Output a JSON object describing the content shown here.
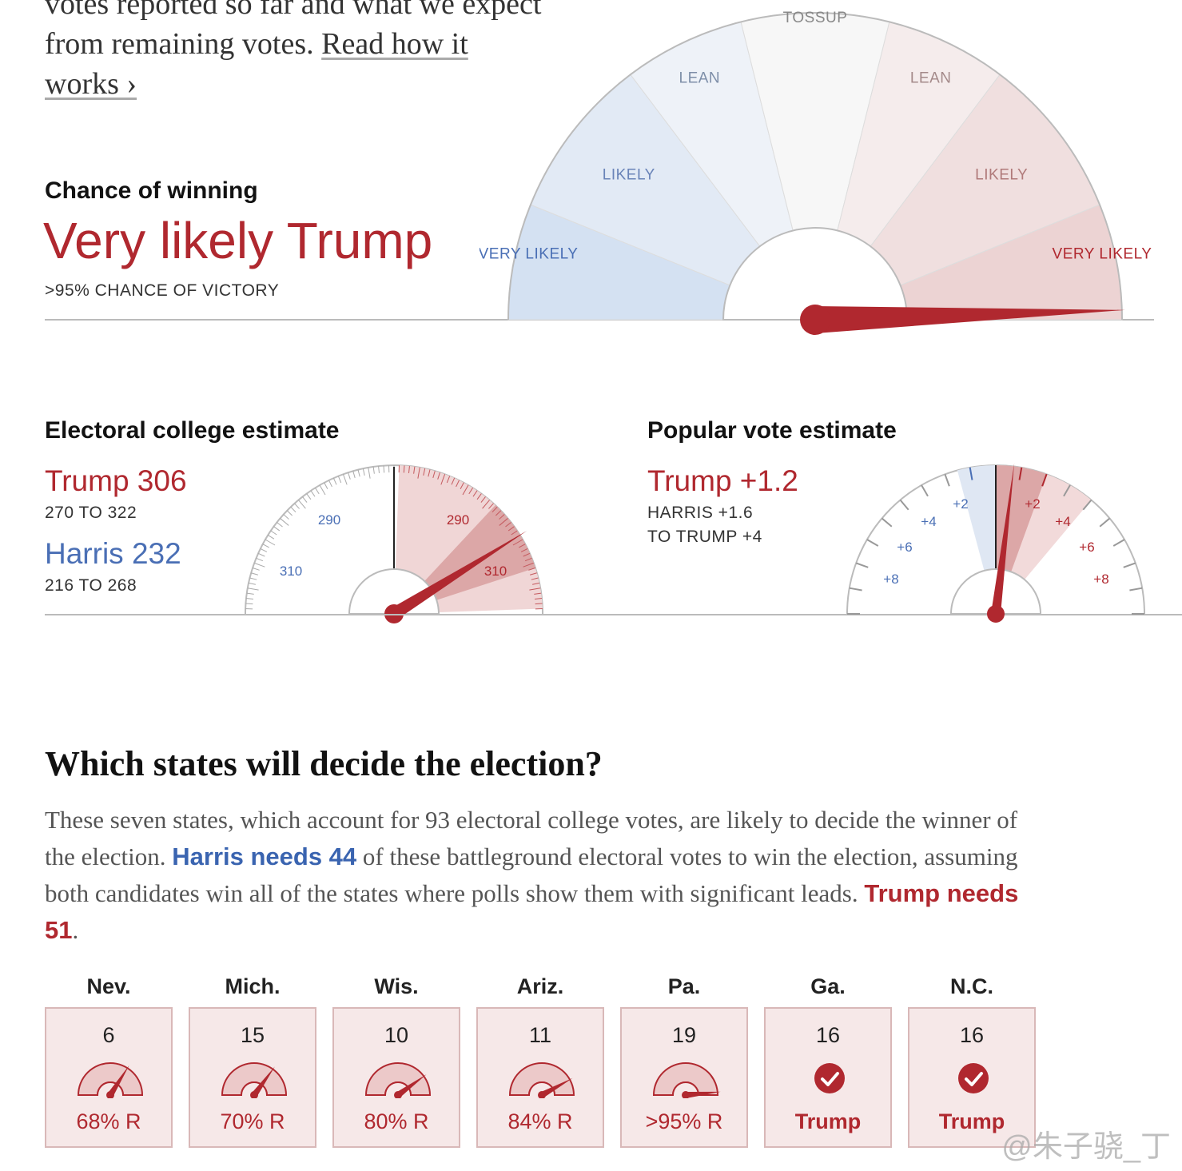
{
  "intro": {
    "line1": "votes reported so far and what we expect",
    "line2": "from remaining votes.",
    "link": "Read how it",
    "link2": "works ›"
  },
  "chance": {
    "heading": "Chance of winning",
    "headline": "Very likely Trump",
    "sub": ">95% CHANCE OF VICTORY",
    "segments": [
      {
        "label": "VERY LIKELY",
        "fill": "#d4e1f2",
        "text": "#4a6fb5"
      },
      {
        "label": "LIKELY",
        "fill": "#e2eaf5",
        "text": "#6a84b8"
      },
      {
        "label": "LEAN",
        "fill": "#eef2f8",
        "text": "#7d8ea8"
      },
      {
        "label": "TOSSUP",
        "fill": "#f7f7f7",
        "text": "#888888"
      },
      {
        "label": "LEAN",
        "fill": "#f5ecec",
        "text": "#a48a8a"
      },
      {
        "label": "LIKELY",
        "fill": "#f0dfdf",
        "text": "#b07a7a"
      },
      {
        "label": "VERY LIKELY",
        "fill": "#ecd3d3",
        "text": "#b0282f"
      }
    ],
    "trump_probability": 0.99
  },
  "electoral": {
    "heading": "Electoral college estimate",
    "trump": "Trump 306",
    "trump_range": "270 TO 322",
    "harris": "Harris 232",
    "harris_range": "216 TO 268",
    "tick_labels_left": [
      "290",
      "310"
    ],
    "tick_labels_right": [
      "290",
      "310"
    ]
  },
  "popular": {
    "heading": "Popular vote estimate",
    "headline": "Trump +1.2",
    "range1": "HARRIS +1.6",
    "range2": "TO TRUMP +4",
    "tick_labels_left": [
      "+2",
      "+4",
      "+6",
      "+8"
    ],
    "tick_labels_right": [
      "+2",
      "+4",
      "+6",
      "+8"
    ]
  },
  "states_section": {
    "title": "Which states will decide the election?",
    "para_a": "These seven states, which account for 93 electoral college votes, are likely to decide the winner of the election.",
    "harris_needs": "Harris needs 44",
    "para_b": "of these battleground electoral votes to win the election, assuming both candidates win all of the states where polls show them with significant leads.",
    "trump_needs": "Trump needs 51",
    "para_c": ".",
    "states": [
      {
        "name": "Nev.",
        "ev": "6",
        "result": "68% R",
        "prob": 0.68,
        "called": false
      },
      {
        "name": "Mich.",
        "ev": "15",
        "result": "70% R",
        "prob": 0.7,
        "called": false
      },
      {
        "name": "Wis.",
        "ev": "10",
        "result": "80% R",
        "prob": 0.8,
        "called": false
      },
      {
        "name": "Ariz.",
        "ev": "11",
        "result": "84% R",
        "prob": 0.84,
        "called": false
      },
      {
        "name": "Pa.",
        "ev": "19",
        "result": ">95% R",
        "prob": 0.97,
        "called": false
      },
      {
        "name": "Ga.",
        "ev": "16",
        "result": "Trump",
        "prob": 1,
        "called": true
      },
      {
        "name": "N.C.",
        "ev": "16",
        "result": "Trump",
        "prob": 1,
        "called": true
      }
    ]
  },
  "watermark": "@朱子骁_丁",
  "colors": {
    "trump": "#b0282f",
    "harris": "#4a6fb5"
  },
  "chart_data": [
    {
      "type": "gauge",
      "title": "Chance of winning",
      "categories": [
        "VERY LIKELY",
        "LIKELY",
        "LEAN",
        "TOSSUP",
        "LEAN",
        "LIKELY",
        "VERY LIKELY"
      ],
      "value": ">95% Trump"
    },
    {
      "type": "gauge",
      "title": "Electoral college estimate",
      "trump_estimate": 306,
      "trump_range": [
        270,
        322
      ],
      "harris_estimate": 232,
      "harris_range": [
        216,
        268
      ]
    },
    {
      "type": "gauge",
      "title": "Popular vote estimate",
      "estimate": "Trump +1.2",
      "range": [
        "Harris +1.6",
        "Trump +4"
      ]
    }
  ]
}
